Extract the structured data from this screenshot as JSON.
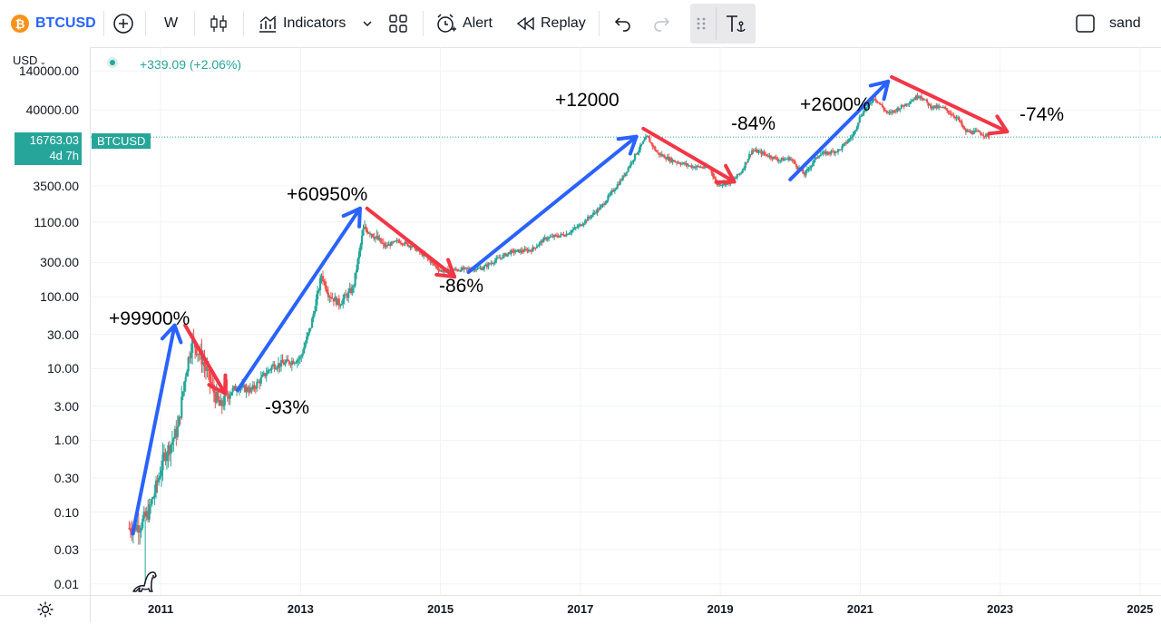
{
  "toolbar": {
    "symbol": "BTCUSD",
    "coin_glyph": "₿",
    "interval": "W",
    "indicators_label": "Indicators",
    "alert_label": "Alert",
    "replay_label": "Replay",
    "layout_name": "sand",
    "icons": [
      "plus-circle-icon",
      "candles-icon",
      "indicators-icon",
      "chevron-down-icon",
      "layouts-icon",
      "alarm-clock-icon",
      "replay-icon",
      "undo-icon",
      "redo-icon",
      "drag-handle-icon",
      "text-anchor-icon",
      "checkbox-icon"
    ]
  },
  "legend": {
    "change": "+339.09 (+2.06%)",
    "color": "#26a69a"
  },
  "price_axis": {
    "currency": "USD",
    "current_price": "16763.03",
    "countdown": "4d 7h",
    "symbol_tag": "BTCUSD",
    "tag_color": "#26a69a"
  },
  "chart_data": {
    "type": "candlestick",
    "title": "BTCUSD",
    "yscale": "log",
    "ylabel": "USD",
    "ylim": [
      0.007,
      300000
    ],
    "xlim": [
      2010.0,
      2025.3
    ],
    "y_ticks": [
      "140000.00",
      "40000.00",
      "3500.00",
      "1100.00",
      "300.00",
      "100.00",
      "30.00",
      "10.00",
      "3.00",
      "1.00",
      "0.30",
      "0.10",
      "0.03",
      "0.01"
    ],
    "y_tick_values": [
      140000,
      40000,
      3500,
      1100,
      300,
      100,
      30,
      10,
      3,
      1,
      0.3,
      0.1,
      0.03,
      0.01
    ],
    "x_ticks": [
      "2011",
      "2013",
      "2015",
      "2017",
      "2019",
      "2021",
      "2023",
      "2025"
    ],
    "x_tick_values": [
      2011,
      2013,
      2015,
      2017,
      2019,
      2021,
      2023,
      2025
    ],
    "last_price": 16763.03,
    "price_series": [
      {
        "t": 2010.55,
        "v": 0.06
      },
      {
        "t": 2010.7,
        "v": 0.065
      },
      {
        "t": 2010.83,
        "v": 0.1
      },
      {
        "t": 2010.95,
        "v": 0.25
      },
      {
        "t": 2011.05,
        "v": 0.6
      },
      {
        "t": 2011.15,
        "v": 0.9
      },
      {
        "t": 2011.25,
        "v": 1.5
      },
      {
        "t": 2011.35,
        "v": 8
      },
      {
        "t": 2011.45,
        "v": 25
      },
      {
        "t": 2011.6,
        "v": 13
      },
      {
        "t": 2011.75,
        "v": 5
      },
      {
        "t": 2011.85,
        "v": 2.8
      },
      {
        "t": 2011.95,
        "v": 4.5
      },
      {
        "t": 2012.1,
        "v": 5.5
      },
      {
        "t": 2012.3,
        "v": 5
      },
      {
        "t": 2012.6,
        "v": 11
      },
      {
        "t": 2012.8,
        "v": 12
      },
      {
        "t": 2013.0,
        "v": 14
      },
      {
        "t": 2013.15,
        "v": 40
      },
      {
        "t": 2013.3,
        "v": 200
      },
      {
        "t": 2013.4,
        "v": 110
      },
      {
        "t": 2013.55,
        "v": 80
      },
      {
        "t": 2013.75,
        "v": 130
      },
      {
        "t": 2013.9,
        "v": 900
      },
      {
        "t": 2014.0,
        "v": 800
      },
      {
        "t": 2014.2,
        "v": 500
      },
      {
        "t": 2014.4,
        "v": 600
      },
      {
        "t": 2014.6,
        "v": 500
      },
      {
        "t": 2014.8,
        "v": 350
      },
      {
        "t": 2015.0,
        "v": 230
      },
      {
        "t": 2015.3,
        "v": 240
      },
      {
        "t": 2015.6,
        "v": 250
      },
      {
        "t": 2015.8,
        "v": 330
      },
      {
        "t": 2016.0,
        "v": 420
      },
      {
        "t": 2016.3,
        "v": 450
      },
      {
        "t": 2016.5,
        "v": 650
      },
      {
        "t": 2016.8,
        "v": 750
      },
      {
        "t": 2017.0,
        "v": 1000
      },
      {
        "t": 2017.3,
        "v": 1800
      },
      {
        "t": 2017.6,
        "v": 4500
      },
      {
        "t": 2017.8,
        "v": 10000
      },
      {
        "t": 2017.95,
        "v": 17000
      },
      {
        "t": 2018.1,
        "v": 10000
      },
      {
        "t": 2018.3,
        "v": 8000
      },
      {
        "t": 2018.6,
        "v": 6500
      },
      {
        "t": 2018.85,
        "v": 6300
      },
      {
        "t": 2018.95,
        "v": 3700
      },
      {
        "t": 2019.15,
        "v": 3900
      },
      {
        "t": 2019.3,
        "v": 5500
      },
      {
        "t": 2019.45,
        "v": 11000
      },
      {
        "t": 2019.6,
        "v": 10000
      },
      {
        "t": 2019.85,
        "v": 8000
      },
      {
        "t": 2020.0,
        "v": 8500
      },
      {
        "t": 2020.2,
        "v": 5000
      },
      {
        "t": 2020.4,
        "v": 9500
      },
      {
        "t": 2020.7,
        "v": 11000
      },
      {
        "t": 2020.9,
        "v": 18000
      },
      {
        "t": 2021.0,
        "v": 33000
      },
      {
        "t": 2021.2,
        "v": 60000
      },
      {
        "t": 2021.4,
        "v": 35000
      },
      {
        "t": 2021.6,
        "v": 45000
      },
      {
        "t": 2021.85,
        "v": 65000
      },
      {
        "t": 2022.0,
        "v": 45000
      },
      {
        "t": 2022.2,
        "v": 42000
      },
      {
        "t": 2022.4,
        "v": 30000
      },
      {
        "t": 2022.5,
        "v": 20000
      },
      {
        "t": 2022.7,
        "v": 19500
      },
      {
        "t": 2022.85,
        "v": 16800
      }
    ],
    "annotations": [
      {
        "text": "+99900%",
        "type": "gain",
        "from": [
          2010.6,
          0.05
        ],
        "to": [
          2011.2,
          40
        ]
      },
      {
        "text": "-93%",
        "type": "loss",
        "from": [
          2011.35,
          40
        ],
        "to": [
          2011.92,
          4.5
        ]
      },
      {
        "text": "+60950%",
        "type": "gain",
        "from": [
          2012.1,
          5
        ],
        "to": [
          2013.85,
          1700
        ]
      },
      {
        "text": "-86%",
        "type": "loss",
        "from": [
          2013.95,
          1700
        ],
        "to": [
          2015.2,
          190
        ]
      },
      {
        "text": "+12000",
        "type": "gain",
        "from": [
          2015.4,
          220
        ],
        "to": [
          2017.8,
          17000
        ]
      },
      {
        "text": "-84%",
        "type": "loss",
        "from": [
          2017.9,
          22000
        ],
        "to": [
          2019.2,
          4000
        ]
      },
      {
        "text": "+2600%",
        "type": "gain",
        "from": [
          2020.0,
          4300
        ],
        "to": [
          2021.4,
          100000
        ]
      },
      {
        "text": "-74%",
        "type": "loss",
        "from": [
          2021.45,
          115000
        ],
        "to": [
          2023.1,
          20000
        ]
      }
    ],
    "gain_color": "#2962ff",
    "loss_color": "#f23645",
    "up_color": "#26a69a",
    "down_color": "#ef5350"
  }
}
